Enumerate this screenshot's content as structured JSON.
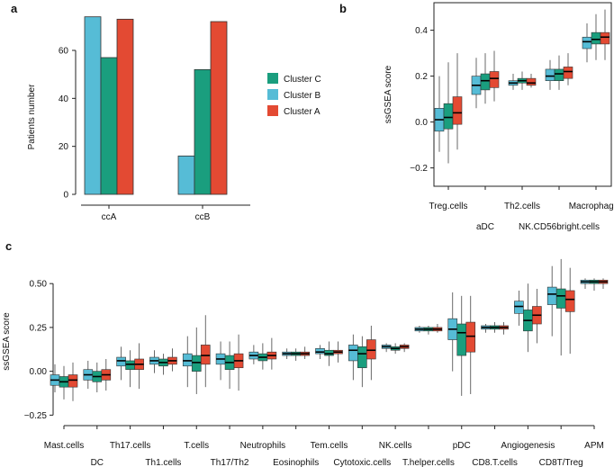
{
  "colors": {
    "cluster_a": "#E34A33",
    "cluster_b": "#56BCD6",
    "cluster_c": "#1A9E7E",
    "axis": "#222222",
    "whisker": "#444444"
  },
  "chart_data": [
    {
      "panel": "a",
      "type": "bar",
      "categories": [
        "ccA",
        "ccB"
      ],
      "series": [
        {
          "name": "Cluster B",
          "values": [
            74,
            16
          ]
        },
        {
          "name": "Cluster C",
          "values": [
            57,
            52
          ]
        },
        {
          "name": "Cluster A",
          "values": [
            73,
            72
          ]
        }
      ],
      "legend": [
        "Cluster C",
        "Cluster B",
        "Cluster A"
      ],
      "ylabel": "Patients number",
      "xlabel": "",
      "yticks": [
        0,
        20,
        40,
        60
      ],
      "ylim": [
        0,
        75
      ],
      "legend_position": "right"
    },
    {
      "panel": "b",
      "type": "box",
      "categories": [
        "Treg.cells",
        "aDC",
        "Th2.cells",
        "NK.CD56bright.cells",
        "Macrophages"
      ],
      "tick_rows": [
        [
          "Treg.cells",
          "Th2.cells",
          "Macrophages"
        ],
        [
          "aDC",
          "NK.CD56bright.cells"
        ]
      ],
      "series_order": [
        "Cluster B",
        "Cluster C",
        "Cluster A"
      ],
      "boxes": [
        [
          [
            -0.13,
            -0.04,
            0.01,
            0.06,
            0.2
          ],
          [
            -0.18,
            -0.03,
            0.02,
            0.08,
            0.26
          ],
          [
            -0.12,
            -0.01,
            0.04,
            0.11,
            0.3
          ]
        ],
        [
          [
            0.06,
            0.12,
            0.16,
            0.2,
            0.28
          ],
          [
            0.08,
            0.14,
            0.18,
            0.21,
            0.3
          ],
          [
            0.09,
            0.15,
            0.19,
            0.22,
            0.31
          ]
        ],
        [
          [
            0.14,
            0.16,
            0.17,
            0.18,
            0.21
          ],
          [
            0.14,
            0.17,
            0.18,
            0.19,
            0.22
          ],
          [
            0.15,
            0.16,
            0.17,
            0.19,
            0.21
          ]
        ],
        [
          [
            0.14,
            0.18,
            0.2,
            0.23,
            0.27
          ],
          [
            0.14,
            0.18,
            0.21,
            0.23,
            0.29
          ],
          [
            0.16,
            0.19,
            0.22,
            0.24,
            0.3
          ]
        ],
        [
          [
            0.26,
            0.32,
            0.35,
            0.37,
            0.43
          ],
          [
            0.27,
            0.34,
            0.36,
            0.39,
            0.47
          ],
          [
            0.27,
            0.34,
            0.37,
            0.39,
            0.49
          ]
        ]
      ],
      "ylabel": "ssGSEA score",
      "yticks": [
        -0.2,
        0.0,
        0.2,
        0.4
      ],
      "ytick_labels": [
        "−0.2",
        "0.0",
        "0.2",
        "0.4"
      ],
      "ylim": [
        -0.28,
        0.52
      ]
    },
    {
      "panel": "c",
      "type": "box",
      "categories": [
        "Mast.cells",
        "DC",
        "Th17.cells",
        "Th1.cells",
        "T.cells",
        "Th17/Th2",
        "Neutrophils",
        "Eosinophils",
        "Tem.cells",
        "Cytotoxic.cells",
        "NK.cells",
        "T.helper.cells",
        "pDC",
        "CD8.T.cells",
        "Angiogenesis",
        "CD8T/Treg",
        "APM"
      ],
      "tick_rows": [
        [
          "Mast.cells",
          "Th17.cells",
          "T.cells",
          "Neutrophils",
          "Tem.cells",
          "NK.cells",
          "pDC",
          "Angiogenesis",
          "APM"
        ],
        [
          "DC",
          "Th1.cells",
          "Th17/Th2",
          "Eosinophils",
          "Cytotoxic.cells",
          "T.helper.cells",
          "CD8.T.cells",
          "CD8T/Treg"
        ]
      ],
      "series_order": [
        "Cluster B",
        "Cluster C",
        "Cluster A"
      ],
      "boxes": [
        [
          [
            -0.12,
            -0.08,
            -0.05,
            -0.02,
            0.04
          ],
          [
            -0.16,
            -0.09,
            -0.06,
            -0.03,
            0.03
          ],
          [
            -0.17,
            -0.09,
            -0.05,
            -0.02,
            0.05
          ]
        ],
        [
          [
            -0.1,
            -0.05,
            -0.02,
            0.01,
            0.06
          ],
          [
            -0.12,
            -0.06,
            -0.03,
            0.0,
            0.05
          ],
          [
            -0.11,
            -0.05,
            -0.02,
            0.01,
            0.07
          ]
        ],
        [
          [
            -0.05,
            0.03,
            0.06,
            0.08,
            0.14
          ],
          [
            -0.09,
            0.01,
            0.04,
            0.06,
            0.12
          ],
          [
            -0.1,
            0.01,
            0.04,
            0.07,
            0.16
          ]
        ],
        [
          [
            -0.01,
            0.04,
            0.06,
            0.08,
            0.12
          ],
          [
            -0.02,
            0.03,
            0.05,
            0.07,
            0.1
          ],
          [
            0.0,
            0.04,
            0.06,
            0.08,
            0.13
          ]
        ],
        [
          [
            -0.09,
            0.03,
            0.06,
            0.1,
            0.2
          ],
          [
            -0.13,
            0.0,
            0.05,
            0.09,
            0.25
          ],
          [
            -0.09,
            0.04,
            0.09,
            0.15,
            0.32
          ]
        ],
        [
          [
            -0.05,
            0.04,
            0.07,
            0.1,
            0.17
          ],
          [
            -0.1,
            0.01,
            0.05,
            0.09,
            0.17
          ],
          [
            -0.11,
            0.02,
            0.06,
            0.1,
            0.21
          ]
        ],
        [
          [
            0.04,
            0.07,
            0.09,
            0.11,
            0.15
          ],
          [
            0.01,
            0.06,
            0.08,
            0.1,
            0.16
          ],
          [
            0.01,
            0.07,
            0.09,
            0.11,
            0.19
          ]
        ],
        [
          [
            0.07,
            0.09,
            0.1,
            0.11,
            0.13
          ],
          [
            0.06,
            0.09,
            0.1,
            0.11,
            0.13
          ],
          [
            0.07,
            0.09,
            0.1,
            0.11,
            0.14
          ]
        ],
        [
          [
            0.07,
            0.1,
            0.11,
            0.13,
            0.15
          ],
          [
            0.03,
            0.09,
            0.1,
            0.12,
            0.17
          ],
          [
            0.05,
            0.1,
            0.11,
            0.12,
            0.17
          ]
        ],
        [
          [
            -0.05,
            0.06,
            0.12,
            0.15,
            0.21
          ],
          [
            -0.09,
            0.02,
            0.1,
            0.14,
            0.2
          ],
          [
            -0.05,
            0.07,
            0.12,
            0.18,
            0.26
          ]
        ],
        [
          [
            0.11,
            0.13,
            0.14,
            0.15,
            0.16
          ],
          [
            0.1,
            0.12,
            0.13,
            0.14,
            0.16
          ],
          [
            0.11,
            0.13,
            0.14,
            0.15,
            0.16
          ]
        ],
        [
          [
            0.22,
            0.23,
            0.24,
            0.25,
            0.26
          ],
          [
            0.21,
            0.23,
            0.24,
            0.25,
            0.26
          ],
          [
            0.22,
            0.23,
            0.24,
            0.25,
            0.27
          ]
        ],
        [
          [
            0.0,
            0.18,
            0.24,
            0.3,
            0.45
          ],
          [
            -0.14,
            0.09,
            0.22,
            0.27,
            0.43
          ],
          [
            -0.13,
            0.11,
            0.2,
            0.28,
            0.43
          ]
        ],
        [
          [
            0.22,
            0.24,
            0.25,
            0.26,
            0.27
          ],
          [
            0.22,
            0.24,
            0.25,
            0.26,
            0.28
          ],
          [
            0.21,
            0.24,
            0.25,
            0.26,
            0.28
          ]
        ],
        [
          [
            0.26,
            0.33,
            0.37,
            0.4,
            0.46
          ],
          [
            0.11,
            0.23,
            0.29,
            0.35,
            0.5
          ],
          [
            0.16,
            0.27,
            0.32,
            0.37,
            0.47
          ]
        ],
        [
          [
            0.2,
            0.38,
            0.44,
            0.48,
            0.6
          ],
          [
            0.09,
            0.36,
            0.43,
            0.47,
            0.64
          ],
          [
            0.1,
            0.34,
            0.41,
            0.46,
            0.59
          ]
        ],
        [
          [
            0.47,
            0.5,
            0.51,
            0.52,
            0.53
          ],
          [
            0.46,
            0.5,
            0.51,
            0.52,
            0.53
          ],
          [
            0.47,
            0.5,
            0.51,
            0.52,
            0.53
          ]
        ]
      ],
      "ylabel": "ssGSEA score",
      "yticks": [
        -0.25,
        0.0,
        0.25,
        0.5
      ],
      "ytick_labels": [
        "−0.25",
        "0.00",
        "0.25",
        "0.50"
      ],
      "ylim": [
        -0.32,
        0.66
      ]
    }
  ]
}
